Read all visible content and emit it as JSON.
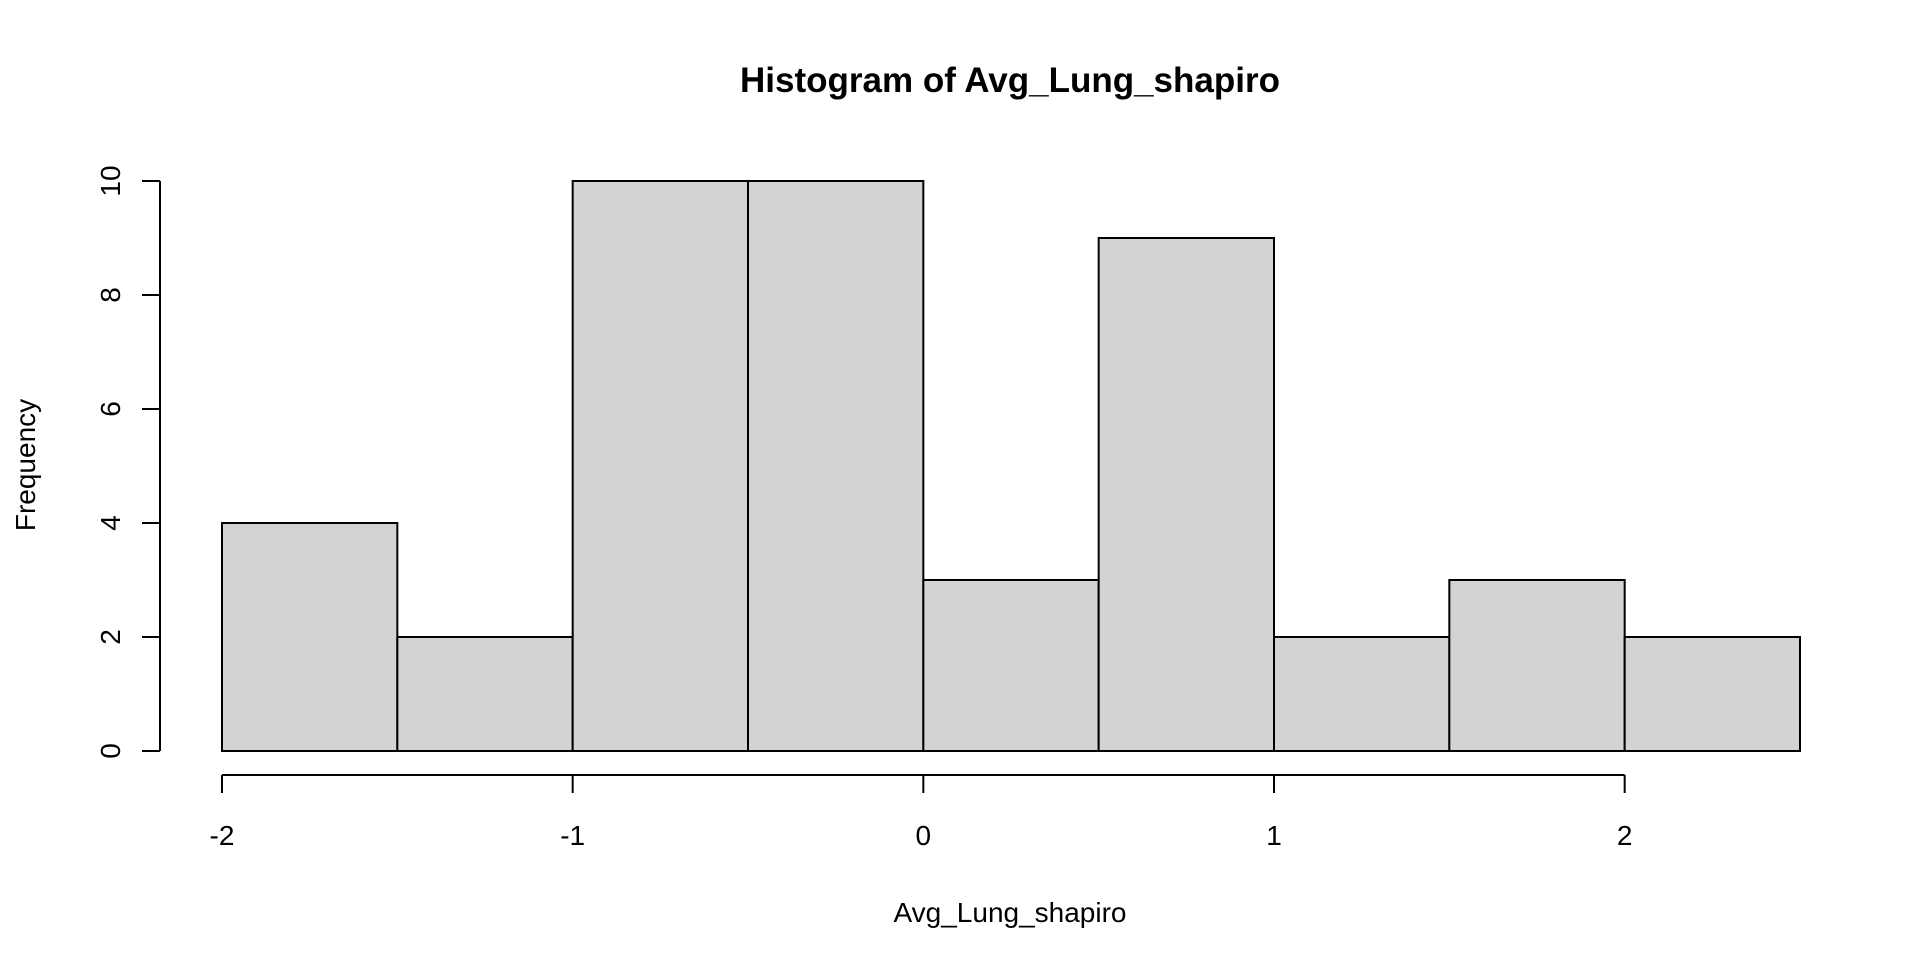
{
  "chart_data": {
    "type": "bar",
    "title": "Histogram of Avg_Lung_shapiro",
    "xlabel": "Avg_Lung_shapiro",
    "ylabel": "Frequency",
    "bins": [
      {
        "start": -2.0,
        "end": -1.5,
        "count": 4
      },
      {
        "start": -1.5,
        "end": -1.0,
        "count": 2
      },
      {
        "start": -1.0,
        "end": -0.5,
        "count": 10
      },
      {
        "start": -0.5,
        "end": 0.0,
        "count": 10
      },
      {
        "start": 0.0,
        "end": 0.5,
        "count": 3
      },
      {
        "start": 0.5,
        "end": 1.0,
        "count": 9
      },
      {
        "start": 1.0,
        "end": 1.5,
        "count": 2
      },
      {
        "start": 1.5,
        "end": 2.0,
        "count": 3
      },
      {
        "start": 2.0,
        "end": 2.5,
        "count": 2
      }
    ],
    "xlim": [
      -2.0,
      2.5
    ],
    "ylim": [
      0,
      10
    ],
    "x_ticks": [
      -2,
      -1,
      0,
      1,
      2
    ],
    "x_tick_labels": [
      "-2",
      "-1",
      "0",
      "1",
      "2"
    ],
    "y_ticks": [
      0,
      2,
      4,
      6,
      8,
      10
    ],
    "y_tick_labels": [
      "0",
      "2",
      "4",
      "6",
      "8",
      "10"
    ],
    "grid": false,
    "legend": "none",
    "bar_color": "#d3d3d3",
    "edge_color": "#000000"
  }
}
